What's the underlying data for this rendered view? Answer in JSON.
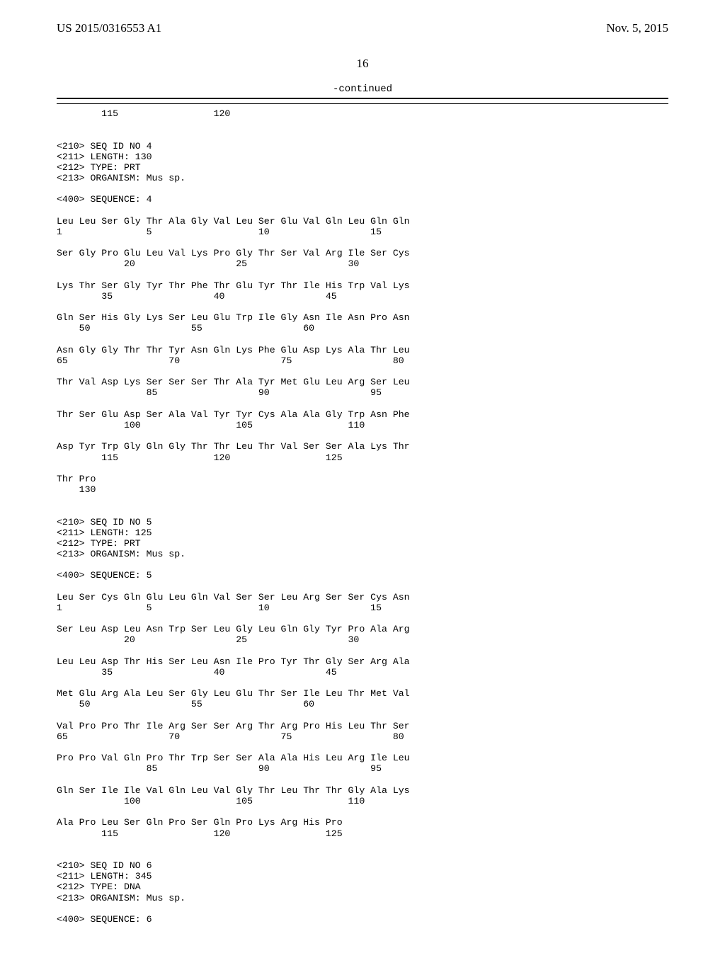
{
  "header": {
    "left": "US 2015/0316553 A1",
    "right": "Nov. 5, 2015"
  },
  "pagenum": "16",
  "continued": "-continued",
  "seq_text": "        115                 120\n\n\n<210> SEQ ID NO 4\n<211> LENGTH: 130\n<212> TYPE: PRT\n<213> ORGANISM: Mus sp.\n\n<400> SEQUENCE: 4\n\nLeu Leu Ser Gly Thr Ala Gly Val Leu Ser Glu Val Gln Leu Gln Gln\n1               5                   10                  15\n\nSer Gly Pro Glu Leu Val Lys Pro Gly Thr Ser Val Arg Ile Ser Cys\n            20                  25                  30\n\nLys Thr Ser Gly Tyr Thr Phe Thr Glu Tyr Thr Ile His Trp Val Lys\n        35                  40                  45\n\nGln Ser His Gly Lys Ser Leu Glu Trp Ile Gly Asn Ile Asn Pro Asn\n    50                  55                  60\n\nAsn Gly Gly Thr Thr Tyr Asn Gln Lys Phe Glu Asp Lys Ala Thr Leu\n65                  70                  75                  80\n\nThr Val Asp Lys Ser Ser Ser Thr Ala Tyr Met Glu Leu Arg Ser Leu\n                85                  90                  95\n\nThr Ser Glu Asp Ser Ala Val Tyr Tyr Cys Ala Ala Gly Trp Asn Phe\n            100                 105                 110\n\nAsp Tyr Trp Gly Gln Gly Thr Thr Leu Thr Val Ser Ser Ala Lys Thr\n        115                 120                 125\n\nThr Pro\n    130\n\n\n<210> SEQ ID NO 5\n<211> LENGTH: 125\n<212> TYPE: PRT\n<213> ORGANISM: Mus sp.\n\n<400> SEQUENCE: 5\n\nLeu Ser Cys Gln Glu Leu Gln Val Ser Ser Leu Arg Ser Ser Cys Asn\n1               5                   10                  15\n\nSer Leu Asp Leu Asn Trp Ser Leu Gly Leu Gln Gly Tyr Pro Ala Arg\n            20                  25                  30\n\nLeu Leu Asp Thr His Ser Leu Asn Ile Pro Tyr Thr Gly Ser Arg Ala\n        35                  40                  45\n\nMet Glu Arg Ala Leu Ser Gly Leu Glu Thr Ser Ile Leu Thr Met Val\n    50                  55                  60\n\nVal Pro Pro Thr Ile Arg Ser Ser Arg Thr Arg Pro His Leu Thr Ser\n65                  70                  75                  80\n\nPro Pro Val Gln Pro Thr Trp Ser Ser Ala Ala His Leu Arg Ile Leu\n                85                  90                  95\n\nGln Ser Ile Ile Val Gln Leu Val Gly Thr Leu Thr Thr Gly Ala Lys\n            100                 105                 110\n\nAla Pro Leu Ser Gln Pro Ser Gln Pro Lys Arg His Pro\n        115                 120                 125\n\n\n<210> SEQ ID NO 6\n<211> LENGTH: 345\n<212> TYPE: DNA\n<213> ORGANISM: Mus sp.\n\n<400> SEQUENCE: 6\n"
}
